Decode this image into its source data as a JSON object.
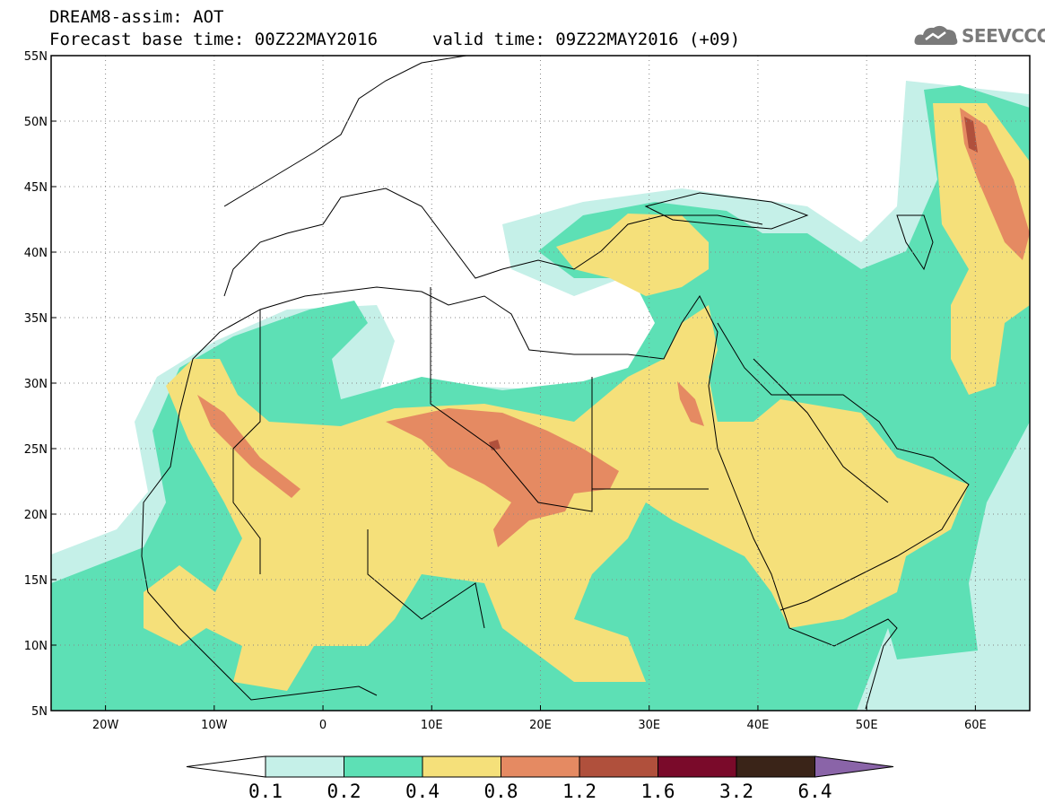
{
  "header": {
    "line1": "DREAM8-assim: AOT",
    "line2": "Forecast base time: 00Z22MAY2016",
    "line3": "valid time: 09Z22MAY2016 (+09)"
  },
  "logo": {
    "text": "SEEVCCC",
    "icon": "cloud-icon"
  },
  "map": {
    "lon_range": [
      -25,
      65
    ],
    "lat_range": [
      5,
      55
    ],
    "lat_labels": [
      "55N",
      "50N",
      "45N",
      "40N",
      "35N",
      "30N",
      "25N",
      "20N",
      "15N",
      "10N",
      "5N"
    ],
    "lon_labels": [
      "20W",
      "10W",
      "0",
      "10E",
      "20E",
      "30E",
      "40E",
      "50E",
      "60E"
    ],
    "grid": true
  },
  "colorbar": {
    "labels": [
      "0.1",
      "0.2",
      "0.4",
      "0.8",
      "1.2",
      "1.6",
      "3.2",
      "6.4"
    ],
    "colors": [
      "#ffffff",
      "#c5f0e8",
      "#5de0b5",
      "#f5e07a",
      "#e58a62",
      "#b0503c",
      "#7a0a2a",
      "#3a2418",
      "#8a64a8"
    ]
  }
}
